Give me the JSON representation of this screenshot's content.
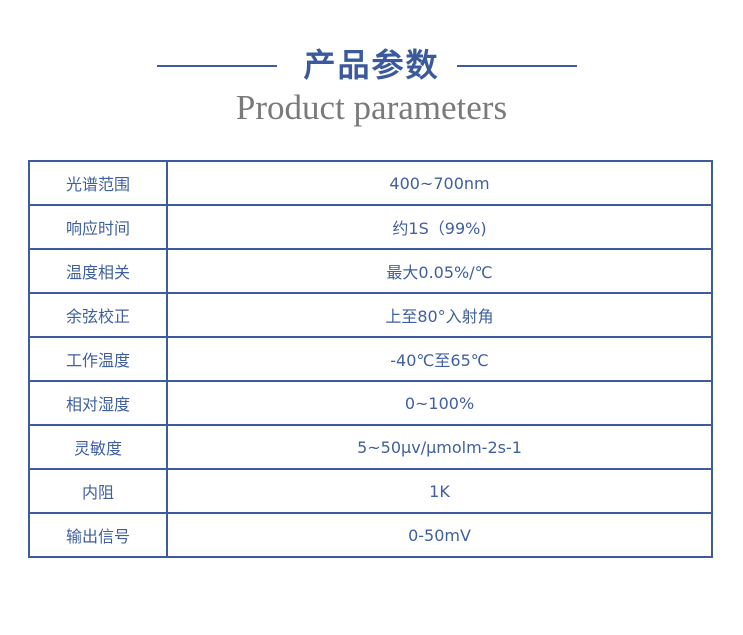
{
  "header": {
    "title": "产品参数",
    "subtitle": "Product parameters"
  },
  "params": [
    {
      "name": "光谱范围",
      "value": "400~700nm"
    },
    {
      "name": "响应时间",
      "value": "约1S（99%)"
    },
    {
      "name": "温度相关",
      "value": "最大0.05%/℃"
    },
    {
      "name": "余弦校正",
      "value": "上至80°入射角"
    },
    {
      "name": "工作温度",
      "value": "-40℃至65℃"
    },
    {
      "name": "相对湿度",
      "value": "0~100%"
    },
    {
      "name": "灵敏度",
      "value": "5~50μv/μmolm-2s-1"
    },
    {
      "name": "内阻",
      "value": "1K"
    },
    {
      "name": "输出信号",
      "value": "0-50mV"
    }
  ]
}
